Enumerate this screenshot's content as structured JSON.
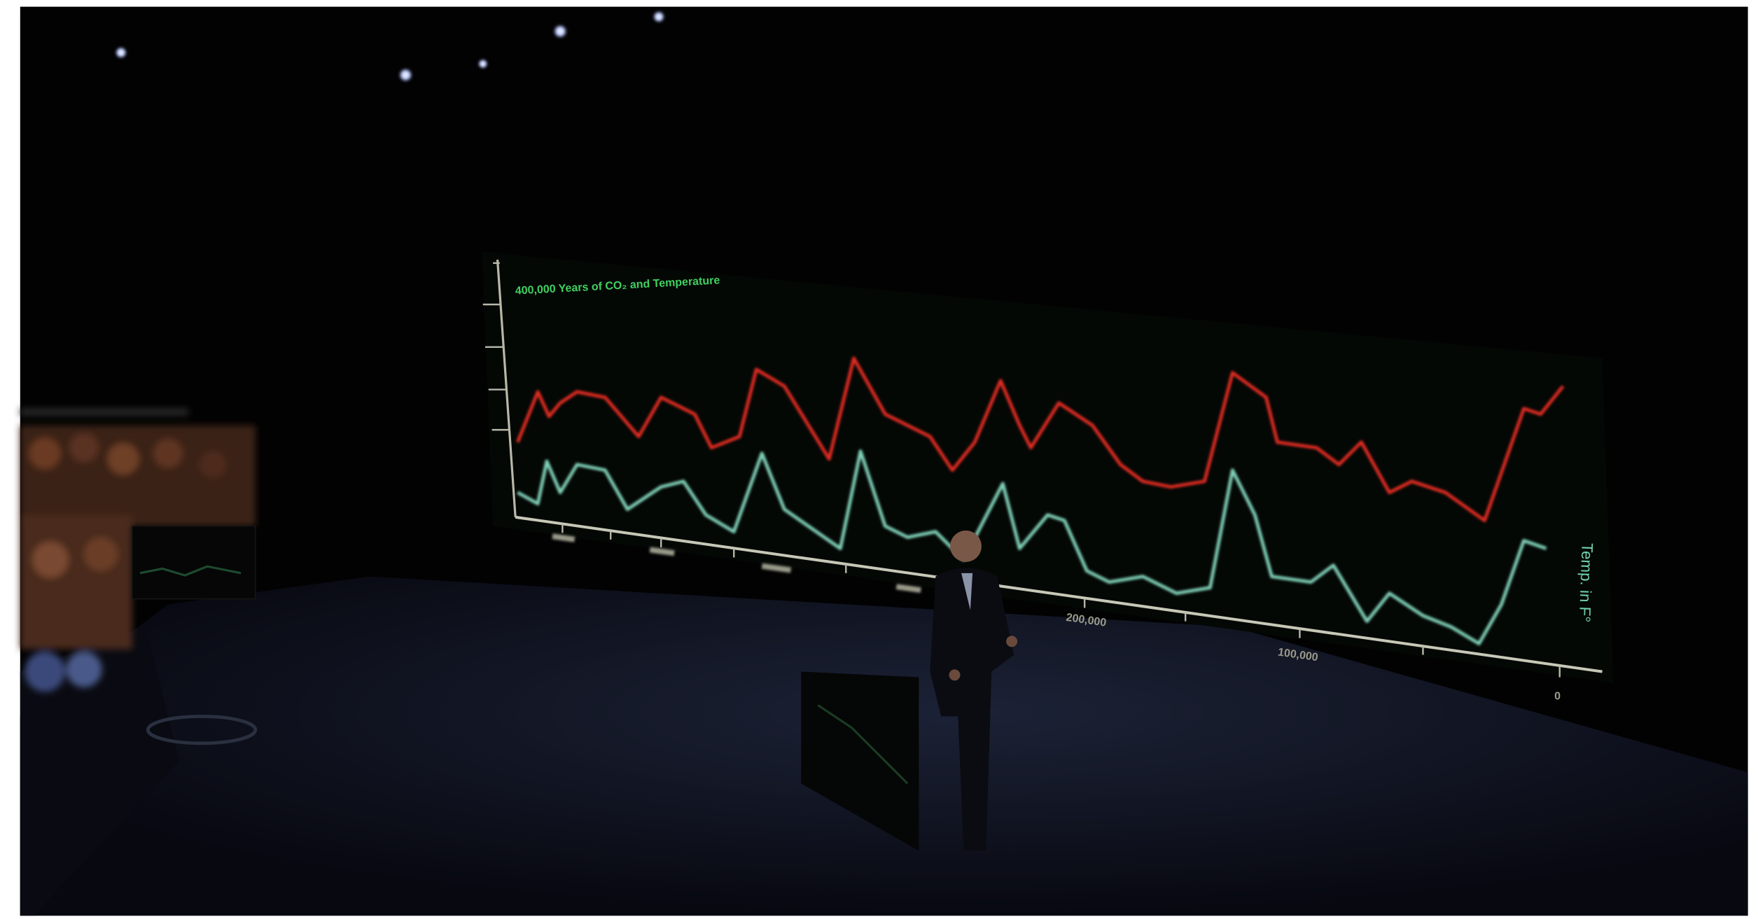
{
  "scene": {
    "screen": {
      "title": "400,000 Years of CO₂ and Temperature",
      "axis_label": "Temp. in F°",
      "x_tick_labels": [
        "200,000",
        "100,000",
        "0"
      ]
    }
  }
}
